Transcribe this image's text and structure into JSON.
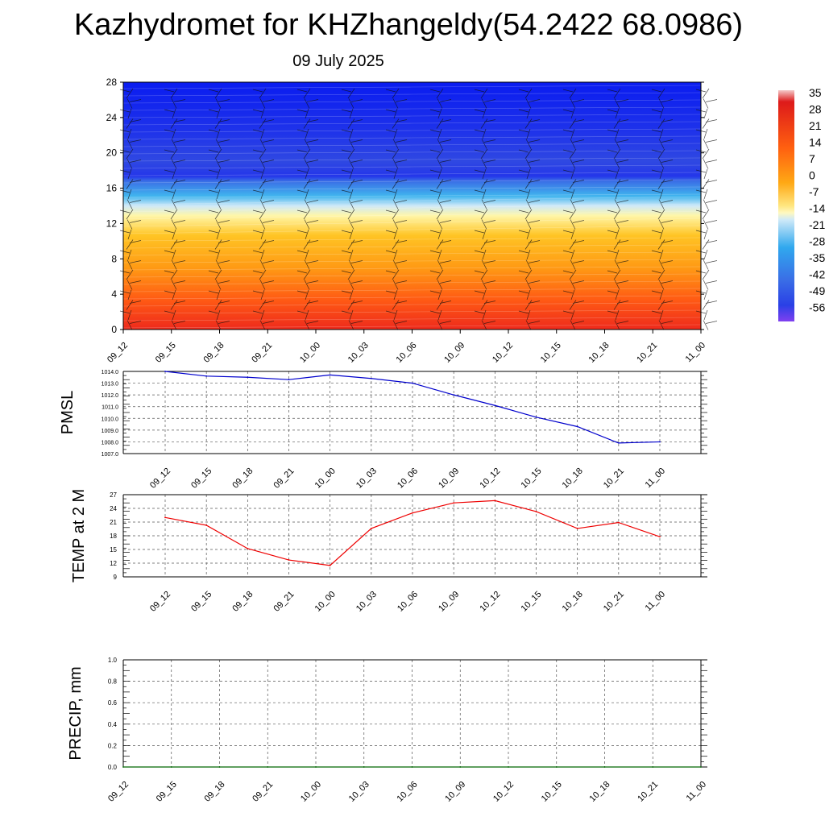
{
  "title": "Kazhydromet for KHZhangeldy(54.2422 68.0986)",
  "subtitle": "09 July 2025",
  "chart_data": [
    {
      "type": "heatmap",
      "ticks_y": [
        "0",
        "4",
        "8",
        "12",
        "16",
        "20",
        "24",
        "28"
      ],
      "ylim": [
        0,
        28
      ],
      "x_ticks": [
        "09_12",
        "09_15",
        "09_18",
        "09_21",
        "10_00",
        "10_03",
        "10_06",
        "10_09",
        "10_12",
        "10_15",
        "10_18",
        "10_21",
        "11_00"
      ],
      "colorbar_labels": [
        "35",
        "28",
        "21",
        "14",
        "7",
        "0",
        "-7",
        "-14",
        "-21",
        "-28",
        "-35",
        "-42",
        "-49",
        "-56"
      ],
      "colors": {
        "top": "#0a1cf0",
        "upper": "#2a40e6",
        "sky": "#40b4ee",
        "pale": "#cfe9f8",
        "yellow": "#fff6a8",
        "gold": "#ffc424",
        "orange": "#ff9a14",
        "red": "#ee2a1c"
      }
    },
    {
      "type": "line",
      "ylabel": "PMSL",
      "ylim": [
        1007.0,
        1014.0
      ],
      "y_ticks": [
        "1014.0",
        "1013.0",
        "1012.0",
        "1011.0",
        "1010.0",
        "1009.0",
        "1008.0",
        "1007.0"
      ],
      "x": [
        "09_12",
        "09_15",
        "09_18",
        "09_21",
        "10_00",
        "10_03",
        "10_06",
        "10_09",
        "10_12",
        "10_15",
        "10_18",
        "10_21",
        "11_00"
      ],
      "values": [
        1014.0,
        1013.6,
        1013.5,
        1013.3,
        1013.7,
        1013.4,
        1013.0,
        1012.0,
        1011.1,
        1010.1,
        1009.3,
        1007.9,
        1008.0
      ],
      "color": "#0000cc"
    },
    {
      "type": "line",
      "ylabel": "TEMP at 2 M",
      "ylim": [
        9,
        27
      ],
      "y_ticks": [
        "27",
        "24",
        "21",
        "18",
        "15",
        "12",
        "9"
      ],
      "x": [
        "09_12",
        "09_15",
        "09_18",
        "09_21",
        "10_00",
        "10_03",
        "10_06",
        "10_09",
        "10_12",
        "10_15",
        "10_18",
        "10_21",
        "11_00"
      ],
      "values": [
        22.0,
        20.3,
        15.2,
        12.7,
        11.5,
        19.6,
        23.0,
        25.2,
        25.7,
        23.3,
        19.6,
        20.9,
        17.8
      ],
      "color": "#ee0000"
    },
    {
      "type": "line",
      "ylabel": "PRECIP, mm",
      "ylim": [
        0.0,
        1.0
      ],
      "y_ticks": [
        "1.0",
        "0.8",
        "0.6",
        "0.4",
        "0.2",
        "0.0"
      ],
      "x": [
        "09_12",
        "09_15",
        "09_18",
        "09_21",
        "10_00",
        "10_03",
        "10_06",
        "10_09",
        "10_12",
        "10_15",
        "10_18",
        "10_21",
        "11_00"
      ],
      "values": [
        0,
        0,
        0,
        0,
        0,
        0,
        0,
        0,
        0,
        0,
        0,
        0,
        0
      ],
      "color": "#006600"
    }
  ]
}
